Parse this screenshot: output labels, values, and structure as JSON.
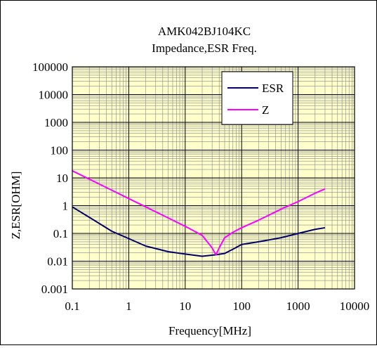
{
  "chart_data": {
    "type": "line",
    "title_line1": "AMK042BJ104KC",
    "title_line2": "Impedance,ESR Freq.",
    "xlabel": "Frequency[MHz]",
    "ylabel": "Z,ESR[OHM]",
    "xscale": "log",
    "yscale": "log",
    "xlim": [
      0.1,
      10000
    ],
    "ylim": [
      0.001,
      100000
    ],
    "x_tick_labels": [
      "0.1",
      "1",
      "10",
      "100",
      "1000",
      "10000"
    ],
    "y_tick_labels": [
      "0.001",
      "0.01",
      "0.1",
      "1",
      "10",
      "100",
      "1000",
      "10000",
      "100000"
    ],
    "grid": true,
    "plot_background": "#ffffcc",
    "legend_position": "top-right",
    "series": [
      {
        "name": "ESR",
        "color": "#000066",
        "points": [
          [
            0.1,
            0.9
          ],
          [
            0.2,
            0.38
          ],
          [
            0.5,
            0.12
          ],
          [
            1,
            0.065
          ],
          [
            2,
            0.035
          ],
          [
            5,
            0.022
          ],
          [
            10,
            0.018
          ],
          [
            20,
            0.015
          ],
          [
            35,
            0.017
          ],
          [
            50,
            0.019
          ],
          [
            70,
            0.027
          ],
          [
            100,
            0.04
          ],
          [
            200,
            0.05
          ],
          [
            500,
            0.07
          ],
          [
            1000,
            0.1
          ],
          [
            2000,
            0.14
          ],
          [
            3000,
            0.16
          ]
        ]
      },
      {
        "name": "Z",
        "color": "#ff00ff",
        "points": [
          [
            0.1,
            18
          ],
          [
            0.2,
            9
          ],
          [
            0.5,
            3.6
          ],
          [
            1,
            1.8
          ],
          [
            2,
            0.9
          ],
          [
            5,
            0.36
          ],
          [
            10,
            0.18
          ],
          [
            20,
            0.085
          ],
          [
            30,
            0.03
          ],
          [
            35,
            0.017
          ],
          [
            40,
            0.03
          ],
          [
            50,
            0.07
          ],
          [
            70,
            0.11
          ],
          [
            100,
            0.16
          ],
          [
            200,
            0.3
          ],
          [
            500,
            0.75
          ],
          [
            1000,
            1.4
          ],
          [
            2000,
            2.8
          ],
          [
            3000,
            4.0
          ]
        ]
      }
    ]
  }
}
